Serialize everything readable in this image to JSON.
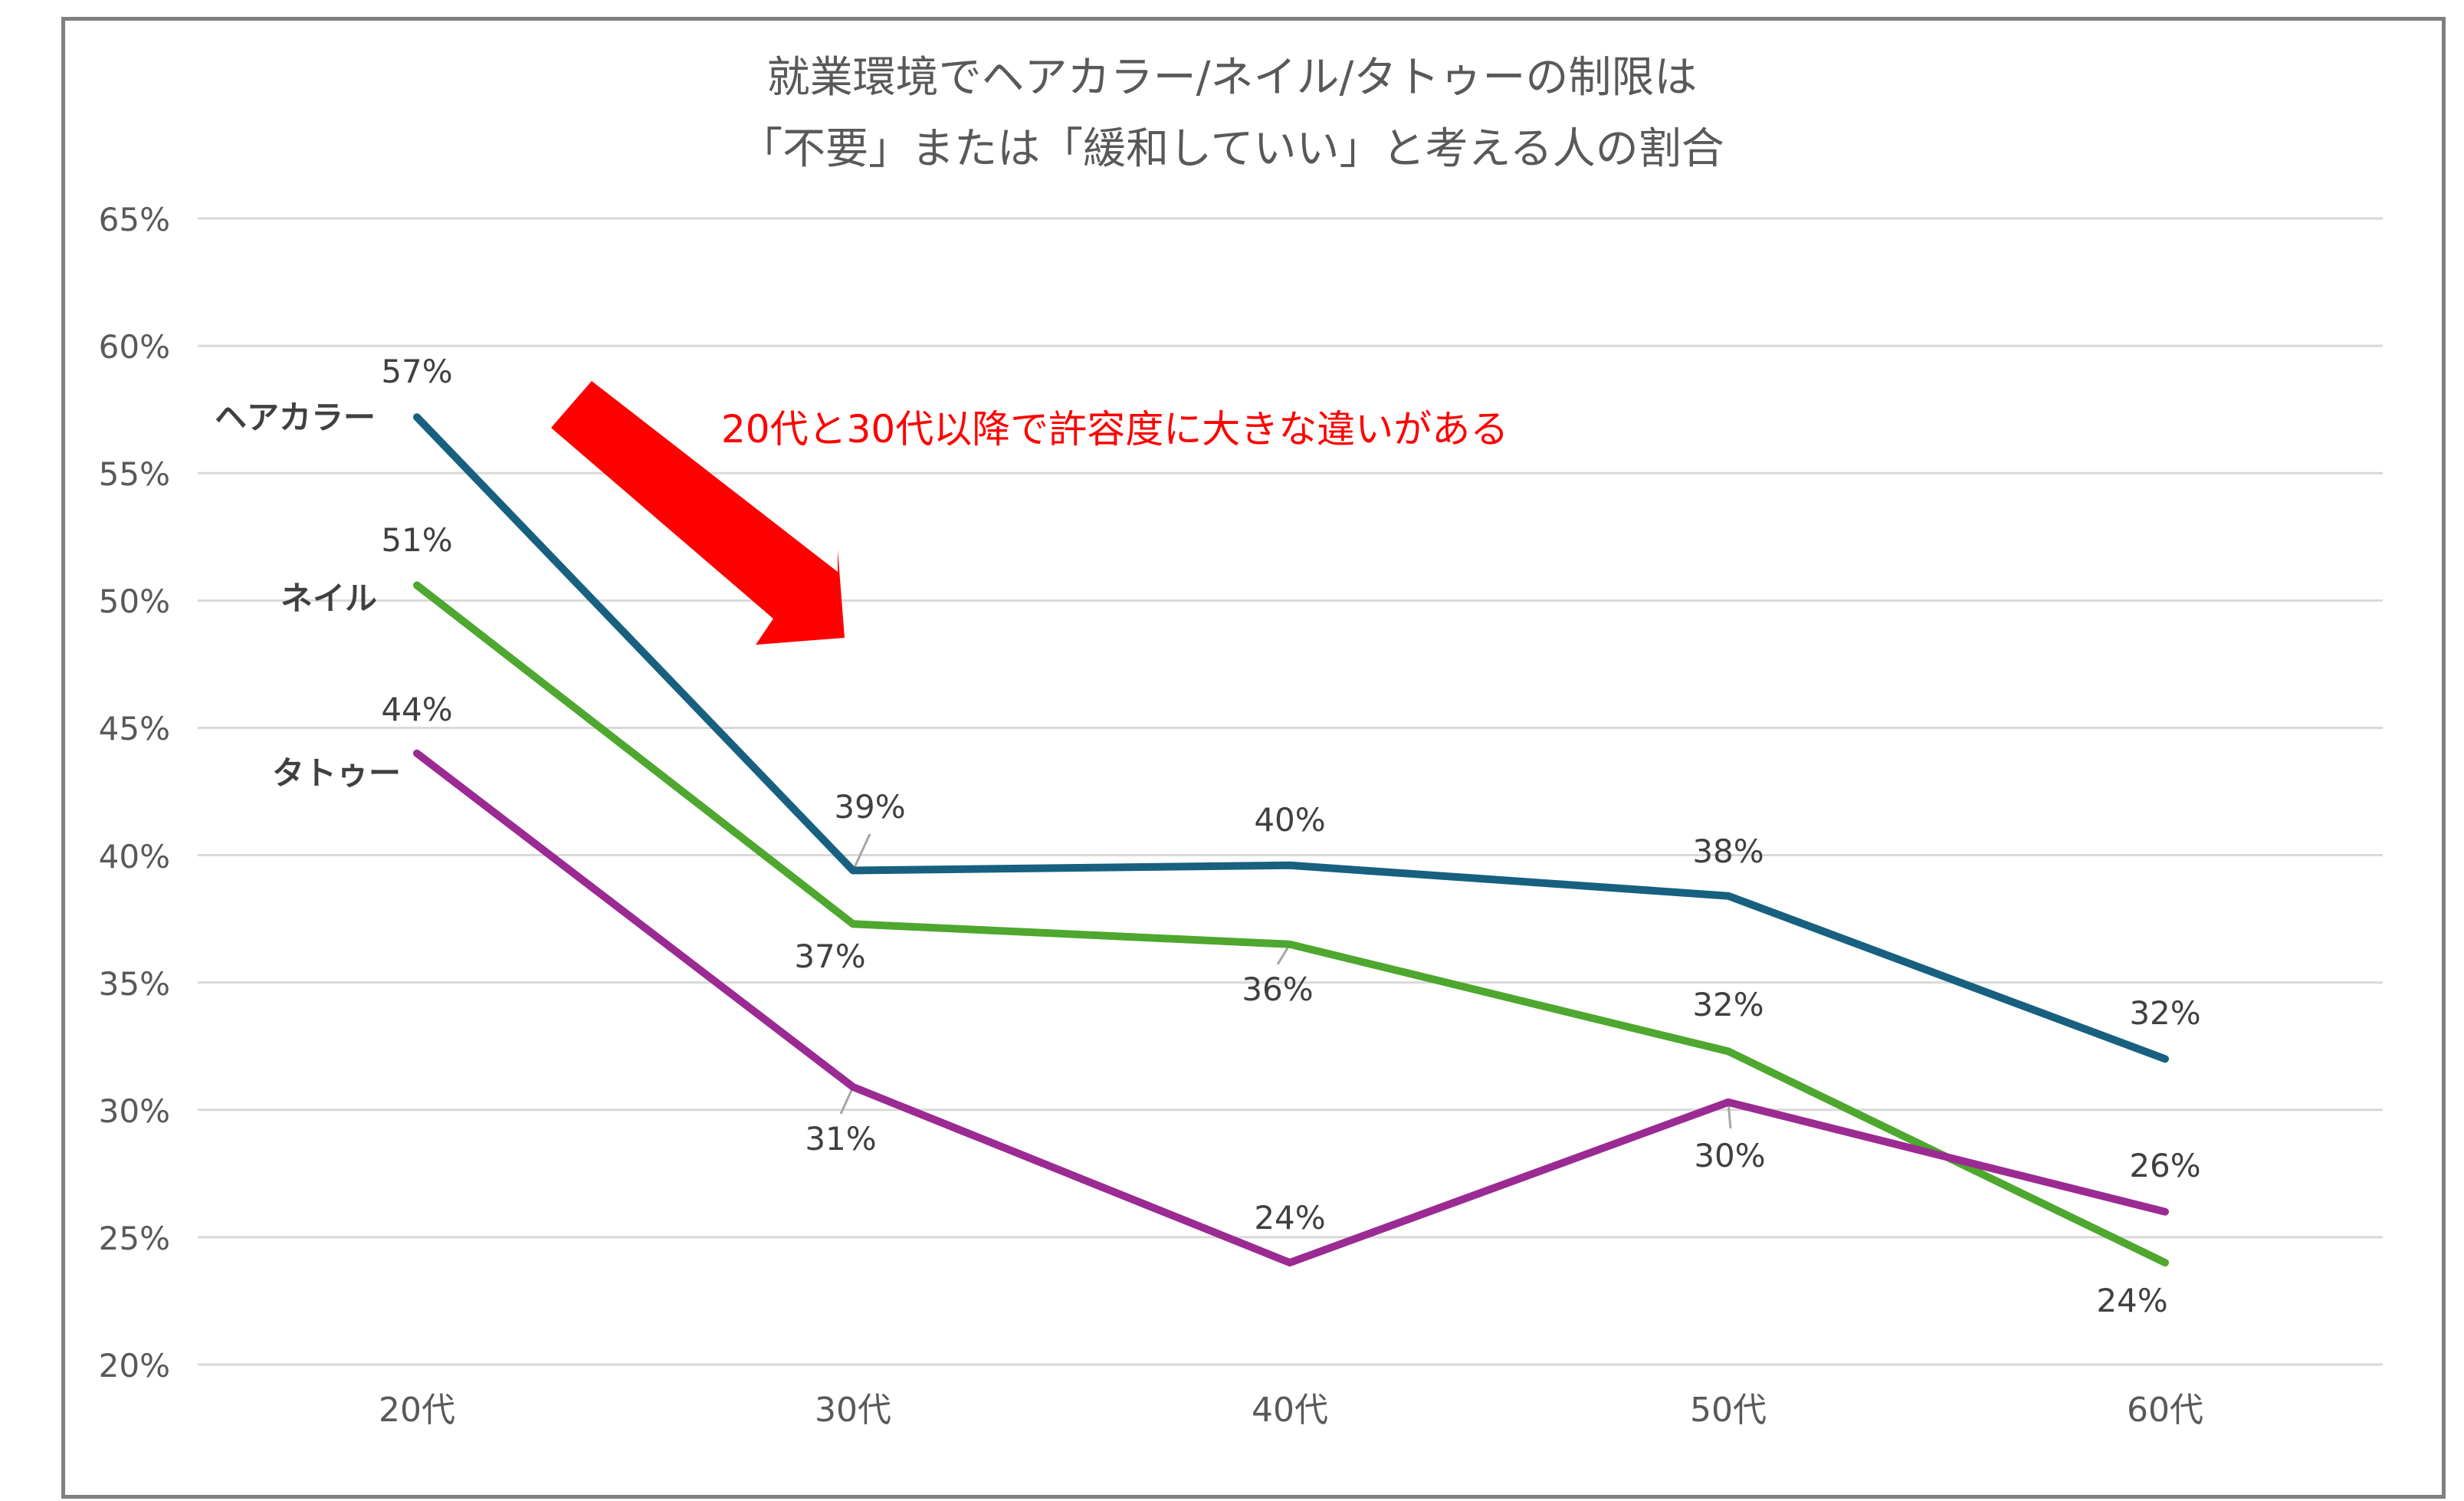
{
  "chart_data": {
    "type": "line",
    "title": "就業環境でヘアカラー/ネイル/タトゥーの制限は「不要」または「緩和していい」と考える人の割合",
    "title_lines": [
      "就業環境でヘアカラー/ネイル/タトゥーの制限は",
      "「不要」または「緩和していい」と考える人の割合"
    ],
    "xlabel": "",
    "ylabel": "",
    "categories": [
      "20代",
      "30代",
      "40代",
      "50代",
      "60代"
    ],
    "yticks": [
      "65%",
      "60%",
      "55%",
      "50%",
      "45%",
      "40%",
      "35%",
      "30%",
      "25%",
      "20%"
    ],
    "ylim": [
      20,
      65
    ],
    "grid": true,
    "legend_position": "inline-left",
    "series": [
      {
        "name": "ヘアカラー",
        "color": "#17607f",
        "values": [
          57.2,
          39.4,
          39.6,
          38.4,
          32.0
        ],
        "labels": [
          "57%",
          "39%",
          "40%",
          "38%",
          "32%"
        ]
      },
      {
        "name": "ネイル",
        "color": "#4ea72e",
        "values": [
          50.6,
          37.3,
          36.5,
          32.3,
          24.0
        ],
        "labels": [
          "51%",
          "37%",
          "36%",
          "32%",
          "24%"
        ]
      },
      {
        "name": "タトゥー",
        "color": "#9b2a93",
        "values": [
          44.0,
          30.9,
          24.0,
          30.3,
          26.0
        ],
        "labels": [
          "44%",
          "31%",
          "24%",
          "30%",
          "26%"
        ]
      }
    ],
    "annotations": [
      {
        "text": "20代と30代以降で許容度に大きな違いがある",
        "color": "#ff0000",
        "type": "arrow-callout"
      }
    ]
  },
  "colors": {
    "grid": "#d9d9d9",
    "border": "#808080",
    "leader": "#a6a6a6",
    "arrow": "#ff0000"
  }
}
